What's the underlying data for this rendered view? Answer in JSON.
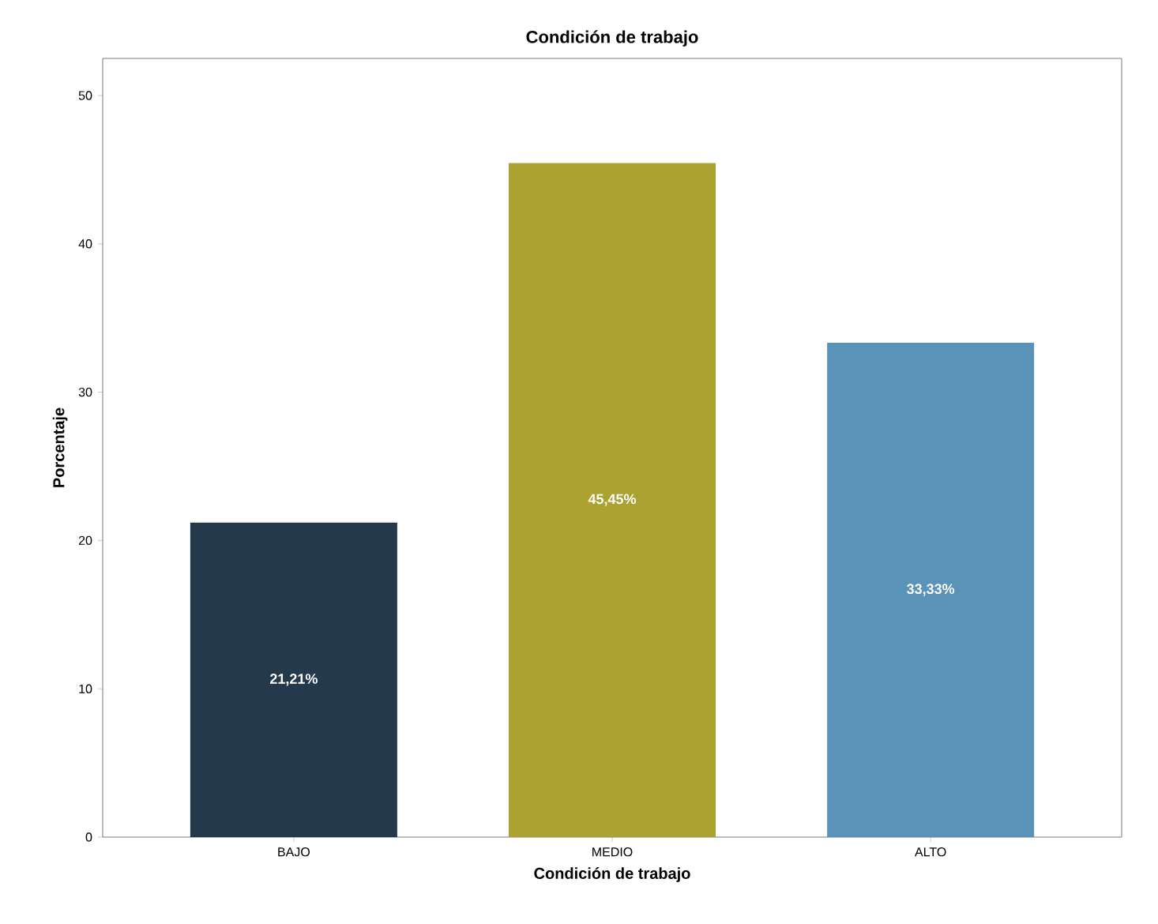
{
  "chart_data": {
    "type": "bar",
    "title": "Condición de trabajo",
    "xlabel": "Condición de trabajo",
    "ylabel": "Porcentaje",
    "categories": [
      "BAJO",
      "MEDIO",
      "ALTO"
    ],
    "values": [
      21.21,
      45.45,
      33.33
    ],
    "colors": [
      "#243a4c",
      "#aba232",
      "#5a93b8"
    ],
    "value_labels": [
      "21,21%",
      "45,45%",
      "33,33%"
    ],
    "ylim": [
      0,
      52.5
    ],
    "yticks": [
      0,
      10,
      20,
      30,
      40,
      50
    ],
    "grid": false
  }
}
